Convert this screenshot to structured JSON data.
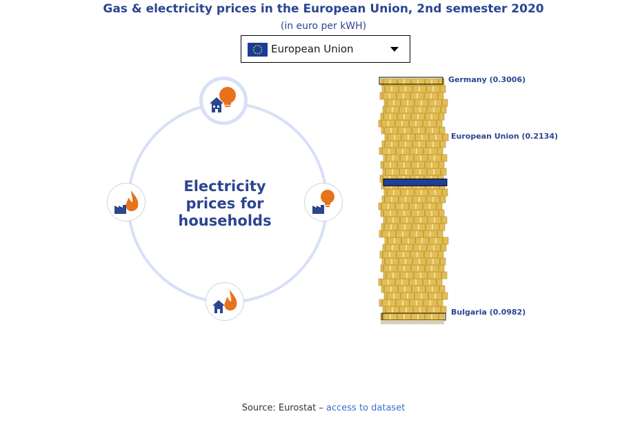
{
  "header": {
    "title": "Gas & electricity prices in the European Union, 2nd semester 2020",
    "subtitle": "(in euro per kWH)"
  },
  "selector": {
    "selected": "European Union",
    "flag_icon": "eu-flag-icon"
  },
  "wheel": {
    "center_label_line1": "Electricity",
    "center_label_line2": "prices for",
    "center_label_line3": "households",
    "nodes": [
      {
        "name": "electricity-households",
        "icon": "house-bulb-icon",
        "active": true
      },
      {
        "name": "electricity-industry",
        "icon": "factory-bulb-icon",
        "active": false
      },
      {
        "name": "gas-households",
        "icon": "house-flame-icon",
        "active": false
      },
      {
        "name": "gas-industry",
        "icon": "factory-flame-icon",
        "active": false
      }
    ]
  },
  "coin_stack": {
    "labels": {
      "max": "Germany (0.3006)",
      "selected": "European Union (0.2134)",
      "min": "Bulgaria (0.0982)"
    },
    "values": {
      "max": 0.3006,
      "selected": 0.2134,
      "min": 0.0982
    }
  },
  "footer": {
    "source_prefix": "Source: Eurostat – ",
    "link": "access to dataset"
  },
  "colors": {
    "brand_blue": "#2b4590",
    "ring": "#d7e0f7",
    "gold": "#e2bd55",
    "orange": "#e8721c"
  }
}
